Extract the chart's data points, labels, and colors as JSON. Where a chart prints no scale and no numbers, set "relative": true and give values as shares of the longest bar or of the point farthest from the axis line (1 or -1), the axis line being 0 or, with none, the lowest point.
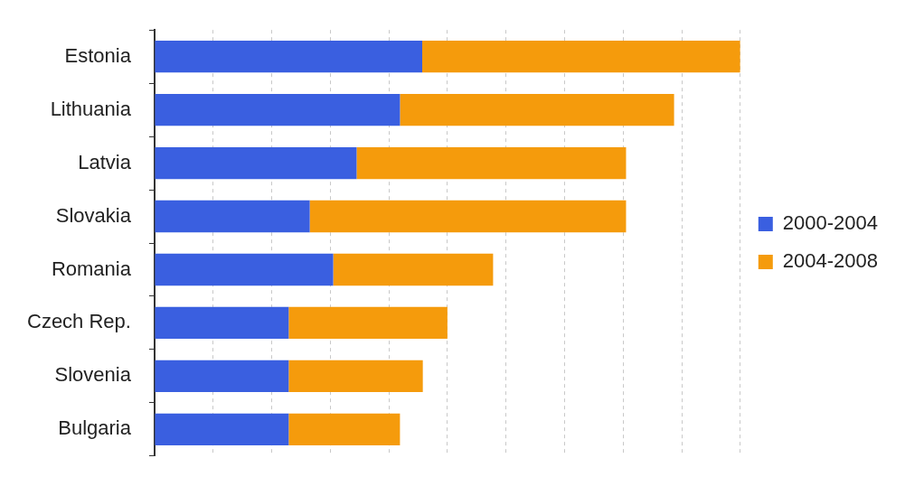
{
  "chart_data": {
    "type": "bar",
    "orientation": "horizontal",
    "stacked": true,
    "relative": true,
    "grid": "x",
    "legend": "right",
    "categories": [
      "Estonia",
      "Lithuania",
      "Latvia",
      "Slovakia",
      "Romania",
      "Czech Rep.",
      "Slovenia",
      "Bulgaria"
    ],
    "series": [
      {
        "name": "2000-2004",
        "color": "#3a5fe0",
        "values": [
          0.457,
          0.419,
          0.345,
          0.265,
          0.305,
          0.229,
          0.229,
          0.229
        ]
      },
      {
        "name": "2004-2008",
        "color": "#f59b0c",
        "values": [
          0.543,
          0.468,
          0.46,
          0.54,
          0.273,
          0.271,
          0.229,
          0.19
        ]
      }
    ]
  }
}
